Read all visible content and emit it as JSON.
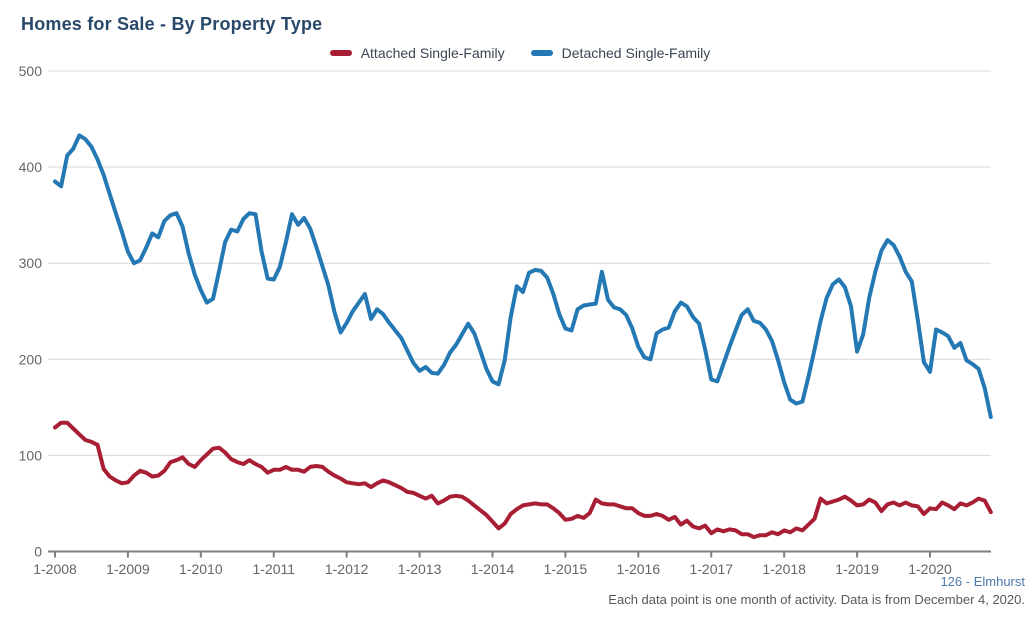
{
  "title": "Homes for Sale - By Property Type",
  "footer": {
    "location_label": "126 - Elmhurst",
    "note": "Each data point is one month of activity. Data is from December 4, 2020."
  },
  "colors": {
    "attached_red": "#a81e34",
    "detached_blue": "#2478b4",
    "title_navy": "#29496b",
    "tick_gray": "#666666",
    "legend_text": "#3a4654",
    "grid_gray": "#d9d9d9",
    "axis_gray": "#7f7f7f",
    "link_blue": "#4d79a9",
    "note_gray": "#595959",
    "background": "#ffffff"
  },
  "chart_data": {
    "type": "line",
    "title": "Homes for Sale - By Property Type",
    "x_unit": "month",
    "x_start": "2008-01",
    "x_end": "2020-11",
    "x_tick_labels": [
      "1-2008",
      "1-2009",
      "1-2010",
      "1-2011",
      "1-2012",
      "1-2013",
      "1-2014",
      "1-2015",
      "1-2016",
      "1-2017",
      "1-2018",
      "1-2019",
      "1-2020"
    ],
    "y_ticks": [
      0,
      100,
      200,
      300,
      400,
      500
    ],
    "ylim": [
      0,
      500
    ],
    "grid": "horizontal",
    "legend_position": "top",
    "series": [
      {
        "name": "Attached Single-Family",
        "color": "#a81e34",
        "values": [
          129,
          134,
          134,
          128,
          122,
          116,
          114,
          111,
          86,
          78,
          74,
          71,
          72,
          79,
          84,
          82,
          78,
          79,
          84,
          93,
          95,
          98,
          91,
          88,
          95,
          101,
          107,
          108,
          103,
          96,
          93,
          91,
          95,
          91,
          88,
          82,
          85,
          85,
          88,
          85,
          85,
          83,
          88,
          89,
          88,
          83,
          79,
          76,
          72,
          71,
          70,
          71,
          67,
          71,
          74,
          72,
          69,
          66,
          62,
          61,
          58,
          55,
          58,
          50,
          53,
          57,
          58,
          57,
          53,
          48,
          43,
          38,
          31,
          24,
          29,
          39,
          44,
          48,
          49,
          50,
          49,
          49,
          45,
          40,
          33,
          34,
          37,
          35,
          40,
          54,
          50,
          49,
          49,
          47,
          45,
          45,
          40,
          37,
          37,
          39,
          37,
          33,
          36,
          28,
          32,
          26,
          24,
          27,
          19,
          23,
          21,
          23,
          22,
          18,
          18,
          15,
          17,
          17,
          20,
          18,
          22,
          20,
          24,
          22,
          28,
          34,
          55,
          50,
          52,
          54,
          57,
          53,
          48,
          49,
          54,
          51,
          42,
          49,
          51,
          48,
          51,
          48,
          47,
          39,
          45,
          44,
          51,
          48,
          44,
          50,
          48,
          51,
          55,
          53,
          41
        ]
      },
      {
        "name": "Detached Single-Family",
        "color": "#2478b4",
        "values": [
          385,
          380,
          412,
          419,
          433,
          429,
          421,
          408,
          392,
          372,
          352,
          333,
          312,
          300,
          303,
          316,
          331,
          327,
          344,
          350,
          352,
          338,
          310,
          288,
          272,
          259,
          263,
          292,
          322,
          335,
          333,
          346,
          352,
          351,
          312,
          284,
          283,
          296,
          322,
          351,
          340,
          347,
          336,
          317,
          297,
          277,
          249,
          228,
          238,
          250,
          259,
          268,
          242,
          252,
          247,
          238,
          230,
          222,
          209,
          196,
          188,
          192,
          186,
          185,
          194,
          207,
          215,
          226,
          237,
          227,
          209,
          190,
          177,
          174,
          199,
          244,
          276,
          270,
          290,
          293,
          292,
          285,
          268,
          247,
          232,
          230,
          252,
          256,
          257,
          258,
          291,
          262,
          254,
          252,
          246,
          232,
          213,
          202,
          200,
          227,
          231,
          233,
          250,
          259,
          255,
          244,
          237,
          210,
          179,
          177,
          195,
          213,
          230,
          246,
          252,
          240,
          238,
          231,
          219,
          199,
          176,
          158,
          154,
          156,
          182,
          210,
          240,
          264,
          278,
          283,
          275,
          255,
          208,
          226,
          264,
          291,
          313,
          324,
          319,
          307,
          291,
          281,
          241,
          197,
          187,
          231,
          228,
          224,
          212,
          217,
          199,
          195,
          190,
          170,
          140
        ]
      }
    ]
  }
}
